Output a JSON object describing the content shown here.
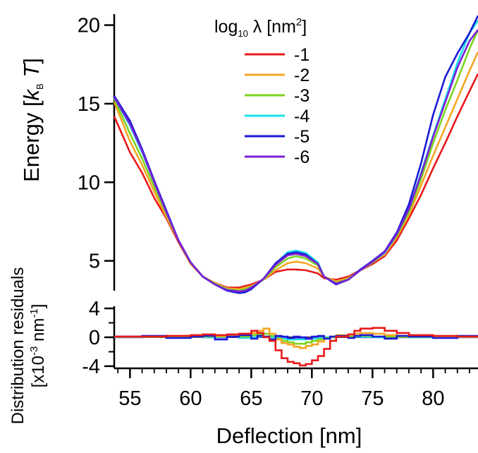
{
  "chart_data": [
    {
      "type": "line",
      "panel": "energy",
      "xlabel": "Deflection [nm]",
      "ylabel": {
        "main": "Energy [",
        "k": "k",
        "k_sub": "B",
        "t": " T",
        "close": "]"
      },
      "xlim": [
        53.7,
        83.7
      ],
      "ylim": [
        3.1,
        20.7
      ],
      "y_ticks": [
        5,
        10,
        15,
        20
      ],
      "legend": {
        "title_main": "log",
        "title_sub": "10",
        "title_rest": " λ [nm",
        "title_sup": "2",
        "title_close": "]",
        "placement": "top-center"
      },
      "x": [
        53.7,
        55,
        56,
        57,
        58,
        59,
        60,
        61,
        62,
        63,
        64,
        64.5,
        65,
        66,
        67,
        68,
        68.7,
        69.5,
        70.5,
        71,
        72,
        73,
        74,
        75,
        76,
        77,
        78,
        79,
        80,
        81,
        82,
        83,
        83.7
      ],
      "series": [
        {
          "name": "-1",
          "color": "#e8191b",
          "values": [
            14.2,
            11.9,
            10.6,
            9.0,
            7.7,
            6.2,
            4.8,
            4.0,
            3.6,
            3.3,
            3.3,
            3.4,
            3.5,
            3.8,
            4.3,
            4.45,
            4.45,
            4.4,
            4.2,
            3.9,
            3.8,
            4.0,
            4.4,
            4.8,
            5.3,
            6.3,
            7.7,
            9.2,
            10.9,
            12.5,
            14.2,
            15.8,
            16.9
          ]
        },
        {
          "name": "-2",
          "color": "#f5a623",
          "values": [
            15.1,
            12.6,
            11.1,
            9.4,
            7.8,
            6.3,
            4.8,
            4.0,
            3.6,
            3.25,
            3.2,
            3.3,
            3.4,
            3.8,
            4.4,
            4.85,
            4.95,
            4.85,
            4.5,
            4.0,
            3.7,
            3.9,
            4.4,
            4.9,
            5.4,
            6.5,
            7.9,
            9.8,
            11.7,
            13.5,
            15.3,
            17.1,
            18.3
          ]
        },
        {
          "name": "-3",
          "color": "#7ed321",
          "values": [
            15.3,
            13.1,
            11.5,
            9.7,
            8.0,
            6.3,
            4.9,
            4.0,
            3.55,
            3.2,
            3.1,
            3.2,
            3.35,
            3.8,
            4.6,
            5.15,
            5.3,
            5.15,
            4.7,
            4.0,
            3.6,
            3.85,
            4.4,
            4.9,
            5.5,
            6.6,
            8.1,
            10.2,
            12.5,
            14.6,
            16.5,
            18.5,
            19.7
          ]
        },
        {
          "name": "-4",
          "color": "#19e3e8",
          "values": [
            15.4,
            13.6,
            11.9,
            10.0,
            8.1,
            6.3,
            4.9,
            4.0,
            3.5,
            3.15,
            3.05,
            3.1,
            3.3,
            3.85,
            4.8,
            5.55,
            5.65,
            5.5,
            4.9,
            4.0,
            3.55,
            3.8,
            4.4,
            4.95,
            5.5,
            6.7,
            8.3,
            10.6,
            13.0,
            15.3,
            17.6,
            19.5,
            20.3
          ]
        },
        {
          "name": "-5",
          "color": "#1b1bd6",
          "values": [
            15.5,
            13.9,
            12.1,
            10.1,
            8.2,
            6.3,
            4.9,
            4.0,
            3.5,
            3.1,
            2.95,
            3.0,
            3.2,
            3.85,
            4.85,
            5.45,
            5.55,
            5.4,
            4.8,
            4.0,
            3.5,
            3.8,
            4.45,
            5.0,
            5.6,
            6.8,
            8.6,
            11.2,
            14.3,
            16.7,
            18.2,
            19.5,
            20.6
          ]
        },
        {
          "name": "-6",
          "color": "#7b1fd6",
          "values": [
            15.4,
            13.7,
            12.0,
            10.0,
            8.1,
            6.3,
            4.9,
            4.0,
            3.5,
            3.15,
            3.05,
            3.1,
            3.3,
            3.85,
            4.75,
            5.35,
            5.45,
            5.3,
            4.8,
            4.0,
            3.55,
            3.8,
            4.4,
            4.95,
            5.55,
            6.7,
            8.3,
            10.5,
            12.9,
            15.1,
            17.3,
            19.0,
            19.7
          ]
        }
      ]
    },
    {
      "type": "line",
      "panel": "residuals",
      "ylabel_line1": "Distribution residuals",
      "ylabel_line2": {
        "a": "[x10",
        "sup1": "-3",
        "b": " nm",
        "sup2": "-1",
        "c": "]"
      },
      "xlabel": "Deflection [nm]",
      "x_ticks": [
        55,
        60,
        65,
        70,
        75,
        80
      ],
      "y_ticks": [
        4,
        0,
        -4
      ],
      "y_tick_labels": [
        "4",
        "0",
        "-4"
      ],
      "xlim": [
        53.7,
        83.7
      ],
      "ylim": [
        -4.3,
        4.3
      ],
      "x": [
        53.7,
        56,
        58,
        60,
        61,
        62,
        63,
        64,
        65,
        65.5,
        66,
        66.5,
        67,
        67.5,
        68,
        68.5,
        69,
        69.5,
        70,
        70.5,
        71,
        71.5,
        72,
        73,
        73.5,
        74,
        75,
        76,
        77,
        78,
        80,
        82,
        83.7
      ],
      "series": [
        {
          "name": "-1",
          "color": "#e8191b",
          "values": [
            0.1,
            0.1,
            0.2,
            0.3,
            0.4,
            0.3,
            0.4,
            0.5,
            0.9,
            0.6,
            0.0,
            -0.5,
            -1.8,
            -2.9,
            -3.4,
            -3.6,
            -3.9,
            -3.7,
            -3.2,
            -2.6,
            -1.6,
            -0.5,
            0.1,
            0.4,
            0.9,
            1.2,
            1.3,
            0.9,
            0.6,
            0.3,
            0.2,
            0.1,
            0.1
          ]
        },
        {
          "name": "-2",
          "color": "#f5a623",
          "values": [
            0.1,
            0.1,
            0.2,
            0.1,
            0.2,
            0.2,
            0.3,
            0.4,
            0.6,
            0.9,
            1.2,
            0.5,
            -0.3,
            -0.8,
            -1.0,
            -1.3,
            -1.5,
            -1.2,
            -1.0,
            -0.6,
            -0.2,
            0.1,
            0.3,
            0.4,
            0.5,
            0.6,
            0.5,
            0.3,
            0.2,
            0.2,
            0.1,
            0.1,
            0.1
          ]
        },
        {
          "name": "-3",
          "color": "#7ed321",
          "values": [
            0.05,
            0.05,
            0.1,
            0.05,
            0.1,
            0.1,
            0.2,
            0.1,
            0.3,
            0.4,
            0.5,
            0.2,
            -0.2,
            -0.5,
            -0.7,
            -0.9,
            -0.9,
            -0.7,
            -0.5,
            -0.3,
            -0.1,
            0.0,
            0.1,
            0.1,
            0.2,
            0.2,
            0.1,
            0.1,
            0.05,
            0.05,
            0.05,
            0.05,
            0.05
          ]
        },
        {
          "name": "-4",
          "color": "#19e3e8",
          "values": [
            0.05,
            0.1,
            0.05,
            0.1,
            0.0,
            0.05,
            0.1,
            -0.1,
            0.0,
            0.1,
            0.1,
            0.0,
            -0.1,
            -0.2,
            -0.3,
            -0.3,
            -0.3,
            -0.2,
            -0.2,
            -0.1,
            0.0,
            0.0,
            0.1,
            0.05,
            0.1,
            0.05,
            0.0,
            0.1,
            0.05,
            0.0,
            0.1,
            0.05,
            0.05
          ]
        },
        {
          "name": "-5",
          "color": "#1b1bd6",
          "values": [
            0.1,
            0.2,
            -0.1,
            0.1,
            0.2,
            -0.3,
            0.1,
            0.3,
            -0.2,
            0.2,
            0.1,
            -0.3,
            0.2,
            0.1,
            -0.1,
            0.1,
            0.0,
            -0.2,
            0.1,
            0.2,
            -0.2,
            0.1,
            0.2,
            -0.1,
            0.2,
            0.3,
            0.1,
            -0.2,
            0.2,
            0.1,
            -0.1,
            0.2,
            0.1
          ]
        },
        {
          "name": "-6",
          "color": "#7b1fd6",
          "values": [
            0.0,
            0.05,
            0.0,
            0.05,
            0.0,
            0.0,
            0.05,
            0.0,
            0.0,
            0.05,
            0.05,
            0.0,
            -0.05,
            -0.1,
            -0.1,
            -0.15,
            -0.15,
            -0.1,
            -0.1,
            -0.05,
            0.0,
            0.0,
            0.05,
            0.0,
            0.05,
            0.0,
            0.0,
            0.05,
            0.0,
            0.0,
            0.05,
            0.0,
            0.0
          ]
        }
      ]
    }
  ]
}
